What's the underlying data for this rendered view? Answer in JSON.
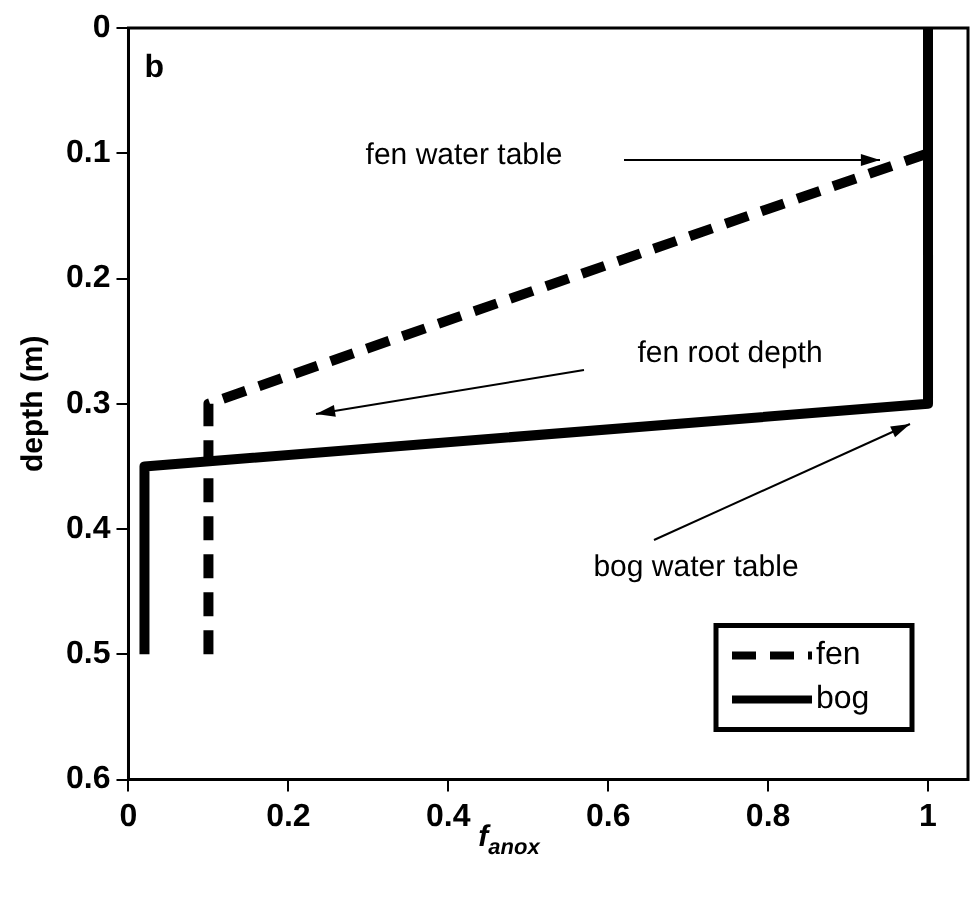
{
  "chart_data": {
    "type": "line",
    "xlabel": "f$_{anox}$",
    "ylabel": "depth (m)",
    "xlim": [
      0,
      1.05
    ],
    "xticks": [
      0,
      0.2,
      0.4,
      0.6,
      0.8,
      1
    ],
    "ylim": [
      0.6,
      0
    ],
    "yticks": [
      0,
      0.1,
      0.2,
      0.3,
      0.4,
      0.5,
      0.6
    ],
    "grid": false,
    "legend": "bottom right",
    "marker": "none",
    "series": [
      {
        "name": "fen",
        "color": "#000000",
        "line_style": "dashed",
        "x": [
          0.1,
          0.1,
          1
        ],
        "values": [
          0.5,
          0.3,
          0.1
        ]
      },
      {
        "name": "bog",
        "color": "#000000",
        "line_style": "solid",
        "x": [
          0.02,
          0.02,
          1,
          1
        ],
        "values": [
          0.5,
          0.35,
          0.3,
          0
        ]
      }
    ],
    "annotations": [
      "b",
      "fen water table",
      "fen root depth",
      "bog water table"
    ]
  }
}
